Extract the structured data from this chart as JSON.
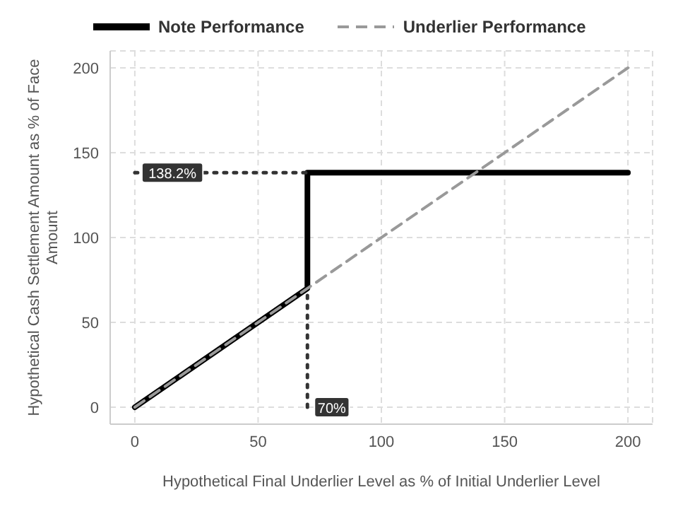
{
  "chart_data": {
    "type": "line",
    "xlabel": "Hypothetical Final Underlier Level as % of Initial Underlier Level",
    "ylabel": "Hypothetical Cash Settlement Amount as % of Face Amount",
    "xlim": [
      -10,
      210
    ],
    "xticks": [
      0,
      50,
      100,
      150,
      200
    ],
    "ylim": [
      -10,
      210
    ],
    "yticks": [
      0,
      50,
      100,
      150,
      200
    ],
    "grid": true,
    "legend": "top left",
    "marker": "none",
    "series": [
      {
        "name": "Note Performance",
        "color": "#000000",
        "x": [
          0,
          70,
          70,
          200
        ],
        "values": [
          0,
          70,
          138.2,
          138.2
        ],
        "line_style": "solid"
      },
      {
        "name": "Underlier Performance",
        "color": "#999999",
        "x": [
          0,
          200
        ],
        "values": [
          0,
          200
        ],
        "line_style": "dashed"
      },
      {
        "color": "#333333",
        "x": [
          0,
          70
        ],
        "values": [
          138.2,
          138.2
        ],
        "line_style": "dotted"
      },
      {
        "color": "#333333",
        "x": [
          70,
          70
        ],
        "values": [
          0,
          70
        ],
        "line_style": "dotted"
      }
    ],
    "annotations": [
      {
        "text": "138.2%",
        "x": 0,
        "y": 138.2
      },
      {
        "text": "70%",
        "x": 70,
        "y": 0
      }
    ]
  }
}
